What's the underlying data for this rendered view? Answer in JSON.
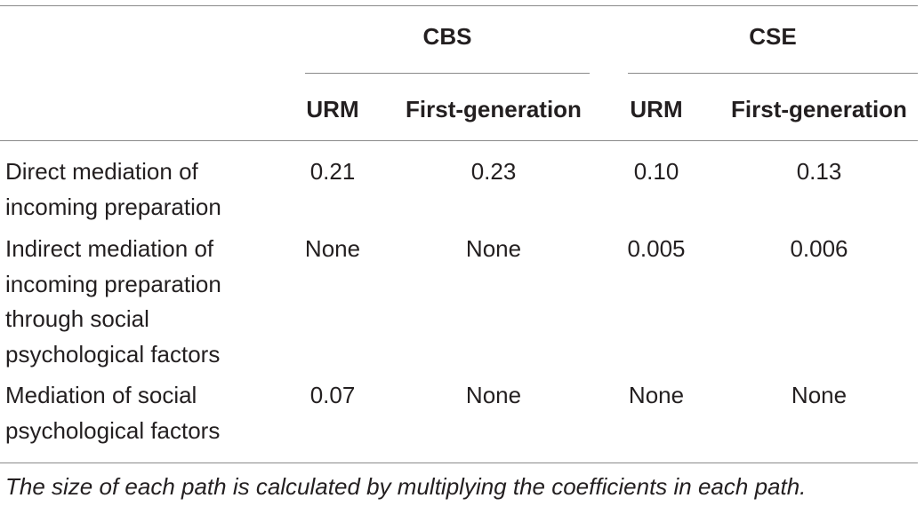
{
  "table": {
    "groups": [
      {
        "label": "CBS",
        "columns": [
          "URM",
          "First-generation"
        ]
      },
      {
        "label": "CSE",
        "columns": [
          "URM",
          "First-generation"
        ]
      }
    ],
    "rows": [
      {
        "label_lines": [
          "Direct mediation of",
          "incoming preparation"
        ],
        "values": [
          "0.21",
          "0.23",
          "0.10",
          "0.13"
        ]
      },
      {
        "label_lines": [
          "Indirect mediation of",
          "incoming preparation",
          "through social",
          "psychological factors"
        ],
        "values": [
          "None",
          "None",
          "0.005",
          "0.006"
        ]
      },
      {
        "label_lines": [
          "Mediation of social",
          "psychological factors"
        ],
        "values": [
          "0.07",
          "None",
          "None",
          "None"
        ]
      }
    ],
    "footnote": "The size of each path is calculated by multiplying the coefficients in each path."
  }
}
